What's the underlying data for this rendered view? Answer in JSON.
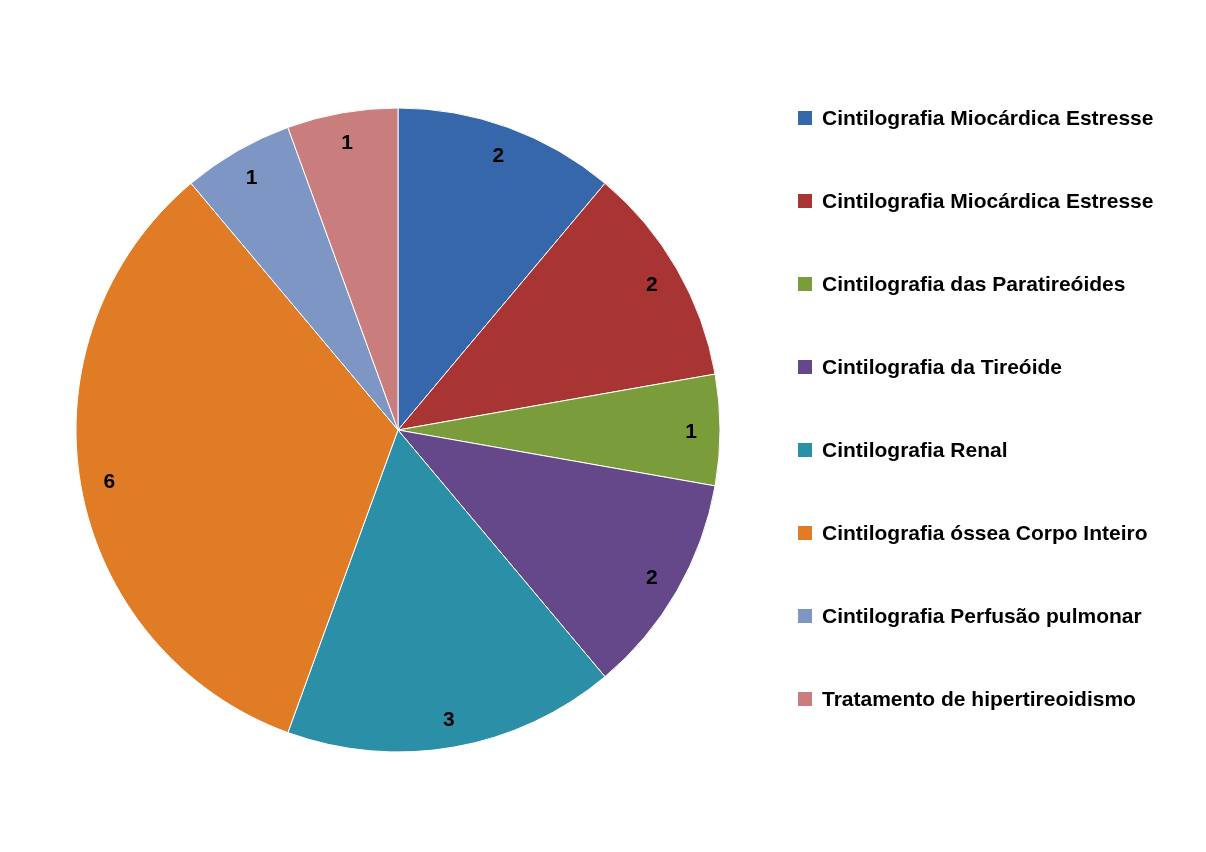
{
  "chart_data": {
    "type": "pie",
    "categories": [
      "Cintilografia Miocárdica Estresse",
      "Cintilografia Miocárdica Estresse",
      "Cintilografia das Paratireóides",
      "Cintilografia da Tireóide",
      "Cintilografia Renal",
      "Cintilografia óssea Corpo Inteiro",
      "Cintilografia Perfusão pulmonar",
      "Tratamento de hipertireoidismo"
    ],
    "values": [
      2,
      2,
      1,
      2,
      3,
      6,
      1,
      1
    ],
    "colors": [
      "#3667ab",
      "#a83533",
      "#7b9c3a",
      "#64488a",
      "#2c8fa8",
      "#e07b26",
      "#7d96c4",
      "#c97d7c"
    ],
    "data_labels": true,
    "legend": "right"
  }
}
